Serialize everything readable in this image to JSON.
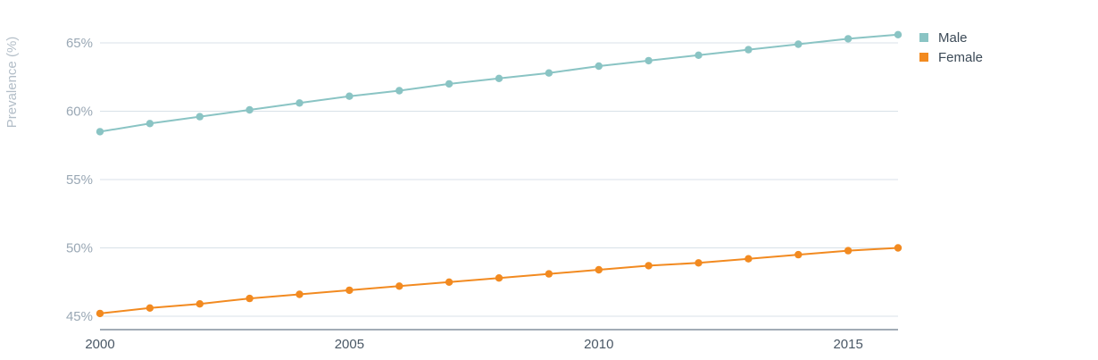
{
  "chart_data": {
    "type": "line",
    "title": "",
    "xlabel": "",
    "ylabel": "Prevalence (%)",
    "x": [
      2000,
      2001,
      2002,
      2003,
      2004,
      2005,
      2006,
      2007,
      2008,
      2009,
      2010,
      2011,
      2012,
      2013,
      2014,
      2015,
      2016
    ],
    "xticks": [
      2000,
      2005,
      2010,
      2015
    ],
    "xtick_labels": [
      "2000",
      "2005",
      "2010",
      "2015"
    ],
    "xlim": [
      2000,
      2016
    ],
    "yticks": [
      45,
      50,
      55,
      60,
      65
    ],
    "ytick_labels": [
      "45%",
      "50%",
      "55%",
      "60%",
      "65%"
    ],
    "ylim": [
      44,
      66
    ],
    "grid": true,
    "legend_position": "top-right",
    "series": [
      {
        "name": "Male",
        "color": "#8ac4c4",
        "values": [
          58.5,
          59.1,
          59.6,
          60.1,
          60.6,
          61.1,
          61.5,
          62.0,
          62.4,
          62.8,
          63.3,
          63.7,
          64.1,
          64.5,
          64.9,
          65.3,
          65.6
        ]
      },
      {
        "name": "Female",
        "color": "#f28a20",
        "values": [
          45.2,
          45.6,
          45.9,
          46.3,
          46.6,
          46.9,
          47.2,
          47.5,
          47.8,
          48.1,
          48.4,
          48.7,
          48.9,
          49.2,
          49.5,
          49.8,
          50.0
        ]
      }
    ]
  }
}
